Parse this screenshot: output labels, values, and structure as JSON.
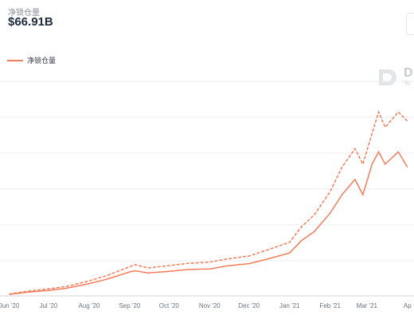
{
  "header": {
    "metric_label": "净锁仓量",
    "metric_value": "$66.91B"
  },
  "legend": {
    "label": "净锁仓量",
    "color": "#f47c5a"
  },
  "watermark": {
    "text": "D",
    "subtext": "Yo"
  },
  "chart_data": {
    "type": "line",
    "title": "",
    "xlabel": "",
    "ylabel": "",
    "grid": true,
    "legend_position": "top-left",
    "x_ticks": [
      "Jun '20",
      "Jul '20",
      "Aug '20",
      "Sep '20",
      "Oct '20",
      "Nov '20",
      "Dec '20",
      "Jan '21",
      "Feb '21",
      "Mar '21",
      "Ap"
    ],
    "x": [
      "2020-06-01",
      "2020-06-15",
      "2020-07-01",
      "2020-07-15",
      "2020-08-01",
      "2020-08-15",
      "2020-09-01",
      "2020-09-05",
      "2020-09-15",
      "2020-10-01",
      "2020-10-15",
      "2020-11-01",
      "2020-11-15",
      "2020-12-01",
      "2020-12-15",
      "2021-01-01",
      "2021-01-10",
      "2021-01-20",
      "2021-02-01",
      "2021-02-10",
      "2021-02-20",
      "2021-02-26",
      "2021-03-05",
      "2021-03-10",
      "2021-03-15",
      "2021-03-25",
      "2021-04-01"
    ],
    "series": [
      {
        "name": "净锁仓量",
        "style": "solid",
        "values": [
          0.5,
          1.2,
          1.8,
          2.5,
          4.0,
          5.5,
          7.8,
          8.2,
          7.5,
          8.0,
          8.6,
          8.8,
          9.8,
          10.5,
          12.0,
          14.0,
          18.0,
          21.0,
          27.0,
          33.0,
          38.0,
          33.0,
          43.0,
          47.0,
          43.0,
          47.0,
          42.0
        ]
      },
      {
        "style": "dashed",
        "values": [
          0.6,
          1.5,
          2.3,
          3.1,
          4.9,
          6.7,
          9.5,
          10.2,
          9.1,
          9.9,
          10.6,
          11.0,
          12.1,
          13.0,
          15.0,
          17.5,
          22.5,
          26.5,
          34.0,
          42.0,
          48.0,
          43.0,
          53.0,
          60.0,
          55.0,
          60.0,
          57.0
        ]
      }
    ]
  }
}
